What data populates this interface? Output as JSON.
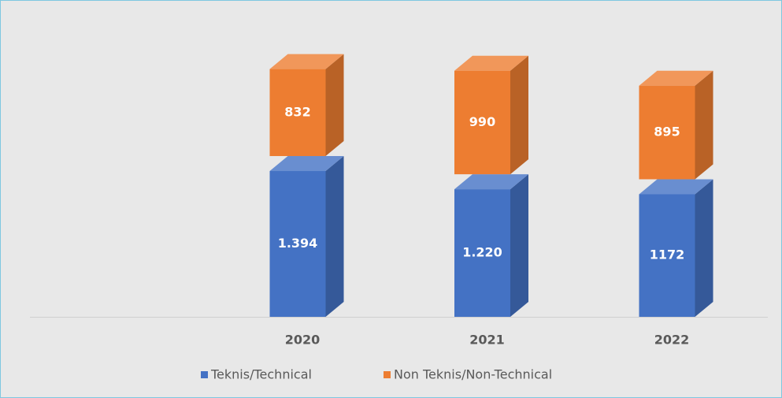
{
  "chart_data": {
    "type": "bar3d_stacked",
    "categories": [
      "2020",
      "2021",
      "2022"
    ],
    "series": [
      {
        "name": "Teknis/Technical",
        "color": "#4472c4",
        "values": [
          1394,
          1220,
          1172
        ],
        "value_labels": [
          "1.394",
          "1.220",
          "1172"
        ]
      },
      {
        "name": "Non Teknis/Non-Technical",
        "color": "#ed7d31",
        "values": [
          832,
          990,
          895
        ]
      }
    ],
    "legend": "bottom"
  }
}
